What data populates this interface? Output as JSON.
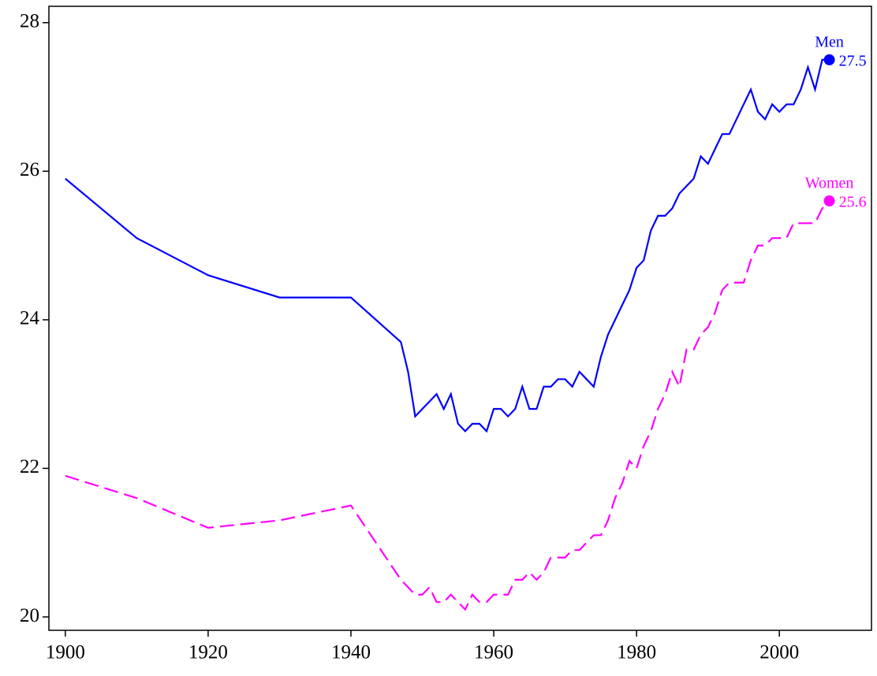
{
  "chart_data": {
    "type": "line",
    "x": [
      1900,
      1910,
      1920,
      1930,
      1940,
      1947,
      1948,
      1949,
      1950,
      1951,
      1952,
      1953,
      1954,
      1955,
      1956,
      1957,
      1958,
      1959,
      1960,
      1961,
      1962,
      1963,
      1964,
      1965,
      1966,
      1967,
      1968,
      1969,
      1970,
      1971,
      1972,
      1973,
      1974,
      1975,
      1976,
      1977,
      1978,
      1979,
      1980,
      1981,
      1982,
      1983,
      1984,
      1985,
      1986,
      1987,
      1988,
      1989,
      1990,
      1991,
      1992,
      1993,
      1994,
      1995,
      1996,
      1997,
      1998,
      1999,
      2000,
      2001,
      2002,
      2003,
      2004,
      2005,
      2006,
      2007
    ],
    "series": [
      {
        "name": "Men",
        "color": "#0000ff",
        "dash": "solid",
        "values": [
          25.9,
          25.1,
          24.6,
          24.3,
          24.3,
          23.7,
          23.3,
          22.7,
          22.8,
          22.9,
          23.0,
          22.8,
          23.0,
          22.6,
          22.5,
          22.6,
          22.6,
          22.5,
          22.8,
          22.8,
          22.7,
          22.8,
          23.1,
          22.8,
          22.8,
          23.1,
          23.1,
          23.2,
          23.2,
          23.1,
          23.3,
          23.2,
          23.1,
          23.5,
          23.8,
          24.0,
          24.2,
          24.4,
          24.7,
          24.8,
          25.2,
          25.4,
          25.4,
          25.5,
          25.7,
          25.8,
          25.9,
          26.2,
          26.1,
          26.3,
          26.5,
          26.5,
          26.7,
          26.9,
          27.1,
          26.8,
          26.7,
          26.9,
          26.8,
          26.9,
          26.9,
          27.1,
          27.4,
          27.1,
          27.5,
          27.5
        ]
      },
      {
        "name": "Women",
        "color": "#ff00ff",
        "dash": "dashed",
        "values": [
          21.9,
          21.6,
          21.2,
          21.3,
          21.5,
          20.5,
          20.4,
          20.3,
          20.3,
          20.4,
          20.2,
          20.2,
          20.3,
          20.2,
          20.1,
          20.3,
          20.2,
          20.2,
          20.3,
          20.3,
          20.3,
          20.5,
          20.5,
          20.6,
          20.5,
          20.6,
          20.8,
          20.8,
          20.8,
          20.9,
          20.9,
          21.0,
          21.1,
          21.1,
          21.3,
          21.6,
          21.8,
          22.1,
          22.0,
          22.3,
          22.5,
          22.8,
          23.0,
          23.3,
          23.1,
          23.6,
          23.6,
          23.8,
          23.9,
          24.1,
          24.4,
          24.5,
          24.5,
          24.5,
          24.8,
          25.0,
          25.0,
          25.1,
          25.1,
          25.1,
          25.3,
          25.3,
          25.3,
          25.3,
          25.5,
          25.6
        ]
      }
    ],
    "xlim": [
      1897.7,
      2012.9
    ],
    "xticks": [
      1900,
      1920,
      1940,
      1960,
      1980,
      2000
    ],
    "ylim": [
      19.82,
      28.22
    ],
    "yticks": [
      20,
      22,
      24,
      26,
      28
    ]
  }
}
